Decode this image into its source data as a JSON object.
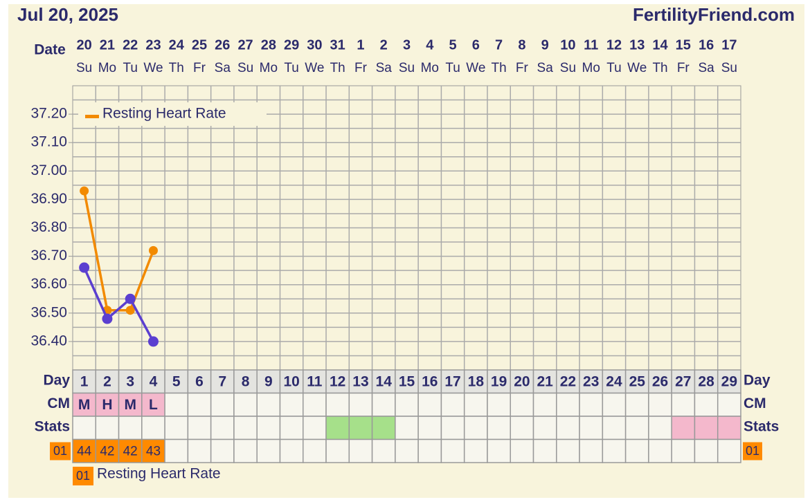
{
  "header": {
    "date": "Jul 20, 2025",
    "site": "FertilityFriend.com"
  },
  "chart_data": {
    "type": "line",
    "date_label": "Date",
    "categories": [
      "20",
      "21",
      "22",
      "23",
      "24",
      "25",
      "26",
      "27",
      "28",
      "29",
      "30",
      "31",
      "1",
      "2",
      "3",
      "4",
      "5",
      "6",
      "7",
      "8",
      "9",
      "10",
      "11",
      "12",
      "13",
      "14",
      "15",
      "16",
      "17"
    ],
    "weekdays": [
      "Su",
      "Mo",
      "Tu",
      "We",
      "Th",
      "Fr",
      "Sa",
      "Su",
      "Mo",
      "Tu",
      "We",
      "Th",
      "Fr",
      "Sa",
      "Su",
      "Mo",
      "Tu",
      "We",
      "Th",
      "Fr",
      "Sa",
      "Su",
      "Mo",
      "Tu",
      "We",
      "Th",
      "Fr",
      "Sa",
      "Su"
    ],
    "ylim": [
      36.3,
      37.3
    ],
    "yticks": [
      {
        "value": 36.4,
        "label": "36.40"
      },
      {
        "value": 36.5,
        "label": "36.50"
      },
      {
        "value": 36.6,
        "label": "36.60"
      },
      {
        "value": 36.7,
        "label": "36.70"
      },
      {
        "value": 36.8,
        "label": "36.80"
      },
      {
        "value": 36.9,
        "label": "36.90"
      },
      {
        "value": 37.0,
        "label": "37.00"
      },
      {
        "value": 37.1,
        "label": "37.10"
      },
      {
        "value": 37.2,
        "label": "37.20"
      }
    ],
    "minor_yticks": [
      36.35,
      36.45,
      36.55,
      36.65,
      36.75,
      36.85,
      36.95,
      37.05,
      37.15,
      37.25
    ],
    "grid": true,
    "legend": "top-left",
    "series": [
      {
        "name": "Resting Heart Rate",
        "color": "#f28a00",
        "values": [
          36.93,
          36.51,
          36.51,
          36.72,
          null,
          null,
          null,
          null,
          null,
          null,
          null,
          null,
          null,
          null,
          null,
          null,
          null,
          null,
          null,
          null,
          null,
          null,
          null,
          null,
          null,
          null,
          null,
          null,
          null
        ]
      },
      {
        "color": "#5b3fd0",
        "values": [
          36.66,
          36.48,
          36.55,
          36.4,
          null,
          null,
          null,
          null,
          null,
          null,
          null,
          null,
          null,
          null,
          null,
          null,
          null,
          null,
          null,
          null,
          null,
          null,
          null,
          null,
          null,
          null,
          null,
          null,
          null
        ]
      }
    ]
  },
  "rows": {
    "day": {
      "label": "Day",
      "values": [
        1,
        2,
        3,
        4,
        5,
        6,
        7,
        8,
        9,
        10,
        11,
        12,
        13,
        14,
        15,
        16,
        17,
        18,
        19,
        20,
        21,
        22,
        23,
        24,
        25,
        26,
        27,
        28,
        29
      ]
    },
    "cm": {
      "label": "CM",
      "color": "#f4b8cc",
      "values": [
        "M",
        "H",
        "M",
        "L",
        null,
        null,
        null,
        null,
        null,
        null,
        null,
        null,
        null,
        null,
        null,
        null,
        null,
        null,
        null,
        null,
        null,
        null,
        null,
        null,
        null,
        null,
        null,
        null,
        null
      ]
    },
    "stats": {
      "label": "Stats",
      "colors": [
        null,
        null,
        null,
        null,
        null,
        null,
        null,
        null,
        null,
        null,
        null,
        "#a6e08a",
        "#a6e08a",
        "#a6e08a",
        null,
        null,
        null,
        null,
        null,
        null,
        null,
        null,
        null,
        null,
        null,
        null,
        "#f4b8cc",
        "#f4b8cc",
        "#f4b8cc"
      ]
    },
    "rhr": {
      "label": "01",
      "color": "#ff8a00",
      "values": [
        44,
        42,
        42,
        43,
        null,
        null,
        null,
        null,
        null,
        null,
        null,
        null,
        null,
        null,
        null,
        null,
        null,
        null,
        null,
        null,
        null,
        null,
        null,
        null,
        null,
        null,
        null,
        null,
        null
      ]
    }
  },
  "footer_legend": {
    "code": "01",
    "label": "Resting Heart Rate"
  }
}
